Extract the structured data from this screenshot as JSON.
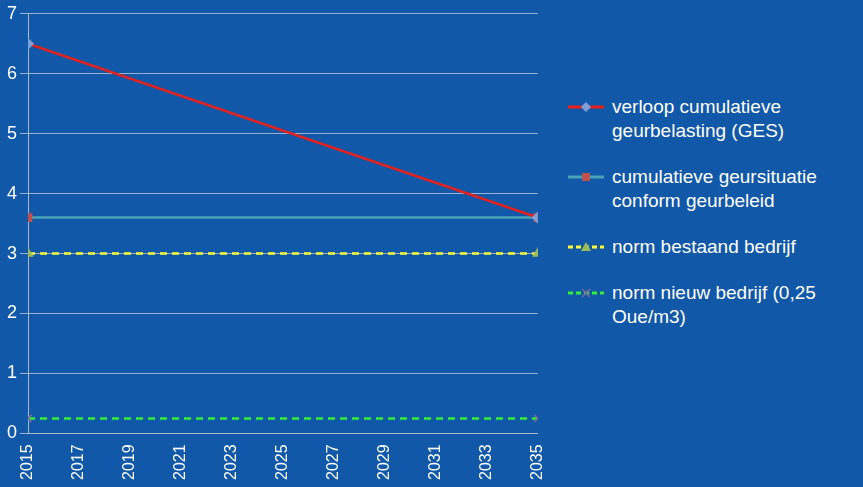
{
  "chart_data": {
    "type": "line",
    "x": [
      2015,
      2035
    ],
    "series": [
      {
        "name": "verloop cumulatieve geurbelasting (GES)",
        "color": "#e8201c",
        "marker": "diamond",
        "line_style": "solid",
        "values": [
          6.5,
          3.6
        ]
      },
      {
        "name": "cumulatieve geursituatie conform geurbeleid",
        "color": "#4aa3b8",
        "marker": "square",
        "line_style": "solid",
        "values": [
          3.6,
          3.6
        ]
      },
      {
        "name": "norm bestaand bedrijf",
        "color": "#ffff33",
        "marker": "triangle",
        "line_style": "dashed",
        "values": [
          3,
          3
        ]
      },
      {
        "name": "norm nieuw bedrijf (0,25 Oue/m3)",
        "color": "#33ee33",
        "marker": "x",
        "line_style": "dashed",
        "values": [
          0.25,
          0.25
        ]
      }
    ],
    "xlim": [
      2015,
      2035
    ],
    "xticks": [
      2015,
      2017,
      2019,
      2021,
      2023,
      2025,
      2027,
      2029,
      2031,
      2033,
      2035
    ],
    "ylim": [
      0,
      7
    ],
    "yticks": [
      0,
      1,
      2,
      3,
      4,
      5,
      6,
      7
    ],
    "grid": true,
    "legend": "right"
  }
}
